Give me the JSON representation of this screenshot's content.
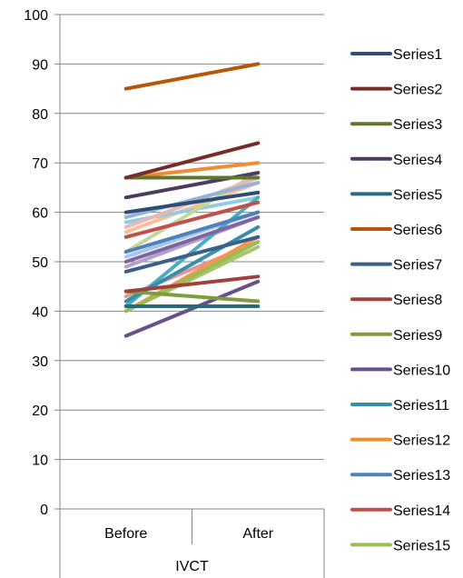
{
  "chart_data": {
    "type": "line",
    "categories": [
      "Before",
      "After"
    ],
    "group_label": "IVCT",
    "ylim": [
      0,
      100
    ],
    "yticks": [
      0,
      10,
      20,
      30,
      40,
      50,
      60,
      70,
      80,
      90,
      100
    ],
    "grid": true,
    "legend_position": "right",
    "series": [
      {
        "name": "Series1",
        "color": "#2C4D75",
        "values": [
          60,
          64
        ]
      },
      {
        "name": "Series2",
        "color": "#772C2A",
        "values": [
          67,
          74
        ]
      },
      {
        "name": "Series3",
        "color": "#5F7530",
        "values": [
          67,
          67
        ]
      },
      {
        "name": "Series4",
        "color": "#4D3B62",
        "values": [
          63,
          68
        ]
      },
      {
        "name": "Series5",
        "color": "#276A7C",
        "values": [
          41,
          41
        ]
      },
      {
        "name": "Series6",
        "color": "#B65708",
        "values": [
          85,
          90
        ]
      },
      {
        "name": "Series7",
        "color": "#3A5F8B",
        "values": [
          48,
          55
        ]
      },
      {
        "name": "Series8",
        "color": "#A0403D",
        "values": [
          44,
          47
        ]
      },
      {
        "name": "Series9",
        "color": "#7F9C3F",
        "values": [
          44,
          42
        ]
      },
      {
        "name": "Series10",
        "color": "#68508A",
        "values": [
          35,
          46
        ]
      },
      {
        "name": "Series11",
        "color": "#368FA8",
        "values": [
          42,
          57
        ]
      },
      {
        "name": "Series12",
        "color": "#F08C32",
        "values": [
          67,
          70
        ]
      },
      {
        "name": "Series13",
        "color": "#4F81BD",
        "values": [
          52,
          60
        ]
      },
      {
        "name": "Series14",
        "color": "#C0504D",
        "values": [
          55,
          62
        ]
      },
      {
        "name": "Series15",
        "color": "#9BBB59",
        "values": [
          40,
          54
        ]
      },
      {
        "name": "",
        "color": "#8064A2",
        "values": [
          50,
          59
        ]
      },
      {
        "name": "",
        "color": "#4BACC6",
        "values": [
          41,
          63
        ]
      },
      {
        "name": "",
        "color": "#F79646",
        "values": [
          40,
          55
        ]
      },
      {
        "name": "",
        "color": "#95B3D7",
        "values": [
          59,
          66
        ]
      },
      {
        "name": "",
        "color": "#E6B9B8",
        "values": [
          57,
          67
        ]
      },
      {
        "name": "",
        "color": "#C3D69B",
        "values": [
          52,
          68
        ]
      },
      {
        "name": "",
        "color": "#B3A2C7",
        "values": [
          49,
          59
        ]
      },
      {
        "name": "",
        "color": "#93CDDD",
        "values": [
          58,
          63
        ]
      },
      {
        "name": "",
        "color": "#FAC090",
        "values": [
          56,
          66
        ]
      },
      {
        "name": "",
        "color": "#A5C8EA",
        "values": [
          51,
          60
        ]
      },
      {
        "name": "",
        "color": "#E69493",
        "values": [
          43,
          54
        ]
      },
      {
        "name": "",
        "color": "#A8C66C",
        "values": [
          40,
          53
        ]
      }
    ]
  }
}
